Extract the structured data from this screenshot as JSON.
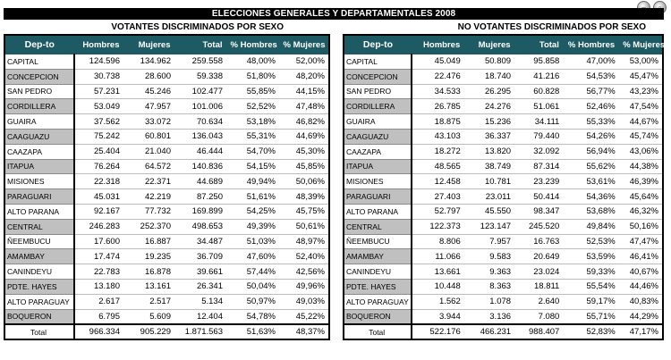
{
  "title": "ELECCIONES GENERALES Y DEPARTAMENTALES 2008",
  "voters": {
    "title": "VOTANTES DISCRIMINADOS POR SEXO",
    "headers": [
      "Dep-to",
      "Hombres",
      "Mujeres",
      "Total",
      "% Hombres",
      "% Mujeres"
    ],
    "rows": [
      [
        "CAPITAL",
        "124.596",
        "134.962",
        "259.558",
        "48,00%",
        "52,00%"
      ],
      [
        "CONCEPCION",
        "30.738",
        "28.600",
        "59.338",
        "51,80%",
        "48,20%"
      ],
      [
        "SAN PEDRO",
        "57.231",
        "45.246",
        "102.477",
        "55,85%",
        "44,15%"
      ],
      [
        "CORDILLERA",
        "53.049",
        "47.957",
        "101.006",
        "52,52%",
        "47,48%"
      ],
      [
        "GUAIRA",
        "37.562",
        "33.072",
        "70.634",
        "53,18%",
        "46,82%"
      ],
      [
        "CAAGUAZU",
        "75.242",
        "60.801",
        "136.043",
        "55,31%",
        "44,69%"
      ],
      [
        "CAAZAPA",
        "25.404",
        "21.040",
        "46.444",
        "54,70%",
        "45,30%"
      ],
      [
        "ITAPUA",
        "76.264",
        "64.572",
        "140.836",
        "54,15%",
        "45,85%"
      ],
      [
        "MISIONES",
        "22.318",
        "22.371",
        "44.689",
        "49,94%",
        "50,06%"
      ],
      [
        "PARAGUARI",
        "45.031",
        "42.219",
        "87.250",
        "51,61%",
        "48,39%"
      ],
      [
        "ALTO PARANA",
        "92.167",
        "77.732",
        "169.899",
        "54,25%",
        "45,75%"
      ],
      [
        "CENTRAL",
        "246.283",
        "252.370",
        "498.653",
        "49,39%",
        "50,61%"
      ],
      [
        "ÑEEMBUCU",
        "17.600",
        "16.887",
        "34.487",
        "51,03%",
        "48,97%"
      ],
      [
        "AMAMBAY",
        "17.474",
        "19.235",
        "36.709",
        "47,60%",
        "52,40%"
      ],
      [
        "CANINDEYU",
        "22.783",
        "16.878",
        "39.661",
        "57,44%",
        "42,56%"
      ],
      [
        "PDTE. HAYES",
        "13.180",
        "13.161",
        "26.341",
        "50,04%",
        "49,96%"
      ],
      [
        "ALTO PARAGUAY",
        "2.617",
        "2.517",
        "5.134",
        "50,97%",
        "49,03%"
      ],
      [
        "BOQUERON",
        "6.795",
        "5.609",
        "12.404",
        "54,78%",
        "45,22%"
      ]
    ],
    "total": [
      "Total",
      "966.334",
      "905.229",
      "1.871.563",
      "51,63%",
      "48,37%"
    ]
  },
  "non_voters": {
    "title": "NO VOTANTES DISCRIMINADOS POR SEXO",
    "headers": [
      "Dep-to",
      "Hombres",
      "Mujeres",
      "Total",
      "% Hombres",
      "% Mujeres"
    ],
    "rows": [
      [
        "CAPITAL",
        "45.049",
        "50.809",
        "95.858",
        "47,00%",
        "53,00%"
      ],
      [
        "CONCEPCION",
        "22.476",
        "18.740",
        "41.216",
        "54,53%",
        "45,47%"
      ],
      [
        "SAN PEDRO",
        "34.533",
        "26.295",
        "60.828",
        "56,77%",
        "43,23%"
      ],
      [
        "CORDILLERA",
        "26.785",
        "24.276",
        "51.061",
        "52,46%",
        "47,54%"
      ],
      [
        "GUAIRA",
        "18.875",
        "15.236",
        "34.111",
        "55,33%",
        "44,67%"
      ],
      [
        "CAAGUAZU",
        "43.103",
        "36.337",
        "79.440",
        "54,26%",
        "45,74%"
      ],
      [
        "CAAZAPA",
        "18.272",
        "13.820",
        "32.092",
        "56,94%",
        "43,06%"
      ],
      [
        "ITAPUA",
        "48.565",
        "38.749",
        "87.314",
        "55,62%",
        "44,38%"
      ],
      [
        "MISIONES",
        "12.458",
        "10.781",
        "23.239",
        "53,61%",
        "46,39%"
      ],
      [
        "PARAGUARI",
        "27.403",
        "23.011",
        "50.414",
        "54,36%",
        "45,64%"
      ],
      [
        "ALTO PARANA",
        "52.797",
        "45.550",
        "98.347",
        "53,68%",
        "46,32%"
      ],
      [
        "CENTRAL",
        "122.373",
        "123.147",
        "245.520",
        "49,84%",
        "50,16%"
      ],
      [
        "ÑEEMBUCU",
        "8.806",
        "7.957",
        "16.763",
        "52,53%",
        "47,47%"
      ],
      [
        "AMAMBAY",
        "11.066",
        "9.583",
        "20.649",
        "53,59%",
        "46,41%"
      ],
      [
        "CANINDEYU",
        "13.661",
        "9.363",
        "23.024",
        "59,33%",
        "40,67%"
      ],
      [
        "PDTE. HAYES",
        "10.448",
        "8.363",
        "18.811",
        "55,54%",
        "44,46%"
      ],
      [
        "ALTO PARAGUAY",
        "1.562",
        "1.078",
        "2.640",
        "59,17%",
        "40,83%"
      ],
      [
        "BOQUERON",
        "3.944",
        "3.136",
        "7.080",
        "55,71%",
        "44,29%"
      ]
    ],
    "total": [
      "Total",
      "522.176",
      "466.231",
      "988.407",
      "52,83%",
      "47,17%"
    ]
  }
}
